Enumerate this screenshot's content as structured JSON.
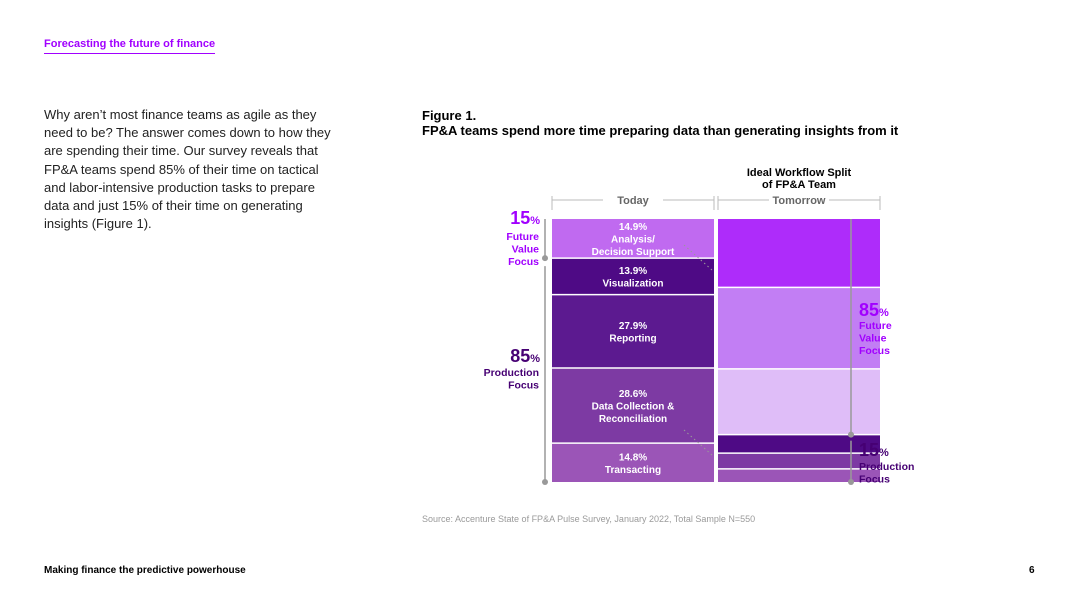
{
  "header": {
    "section_link": "Forecasting the future of finance"
  },
  "intro_text": "Why aren’t most finance teams as agile as they need to be? The answer comes down to how they are spending their time. Our survey reveals that FP&A teams spend 85% of their time on tactical and labor-intensive production tasks to prepare data and just 15% of their time on generating insights (Figure 1).",
  "figure": {
    "label": "Figure 1.",
    "title": "FP&A teams spend more time preparing data than generating insights from it",
    "source": "Source: Accenture State of FP&A Pulse Survey, January 2022, Total Sample N=550"
  },
  "footer": {
    "title": "Making finance the predictive powerhouse",
    "page": "6"
  },
  "colors": {
    "accent": "#a100ff",
    "dark_purple": "#460073"
  },
  "chart_data": {
    "type": "stacked-bar",
    "unit": "%",
    "bars": [
      {
        "name": "Today",
        "segments": [
          {
            "value": 14.9,
            "value_label": "14.9%",
            "label": "Analysis/\nDecision Support",
            "color": "#c06af0"
          },
          {
            "value": 13.9,
            "value_label": "13.9%",
            "label": "Visualization",
            "color": "#4e0a85"
          },
          {
            "value": 27.9,
            "value_label": "27.9%",
            "label": "Reporting",
            "color": "#5c1a90"
          },
          {
            "value": 28.6,
            "value_label": "28.6%",
            "label": "Data Collection &\nReconciliation",
            "color": "#7d3aa3"
          },
          {
            "value": 14.8,
            "value_label": "14.8%",
            "label": "Transacting",
            "color": "#9b55b7"
          }
        ],
        "brackets": [
          {
            "pct": "15",
            "label": "Future\nValue\nFocus",
            "color": "#a100ff"
          },
          {
            "pct": "85",
            "label": "Production\nFocus",
            "color": "#460073"
          }
        ]
      },
      {
        "name": "Tomorrow",
        "heading": "Ideal Workflow Split\nof FP&A Team",
        "segments": [
          {
            "value": 26,
            "color": "#ae2cfa"
          },
          {
            "value": 31,
            "color": "#c27ef4"
          },
          {
            "value": 25,
            "color": "#dfbdf8"
          },
          {
            "value": 7,
            "color": "#4e0a85"
          },
          {
            "value": 6,
            "color": "#7d3aa3"
          },
          {
            "value": 5,
            "color": "#9b55b7"
          }
        ],
        "brackets": [
          {
            "pct": "85",
            "label": "Future\nValue\nFocus",
            "color": "#a100ff"
          },
          {
            "pct": "15",
            "label": "Production\nFocus",
            "color": "#460073"
          }
        ]
      }
    ]
  }
}
